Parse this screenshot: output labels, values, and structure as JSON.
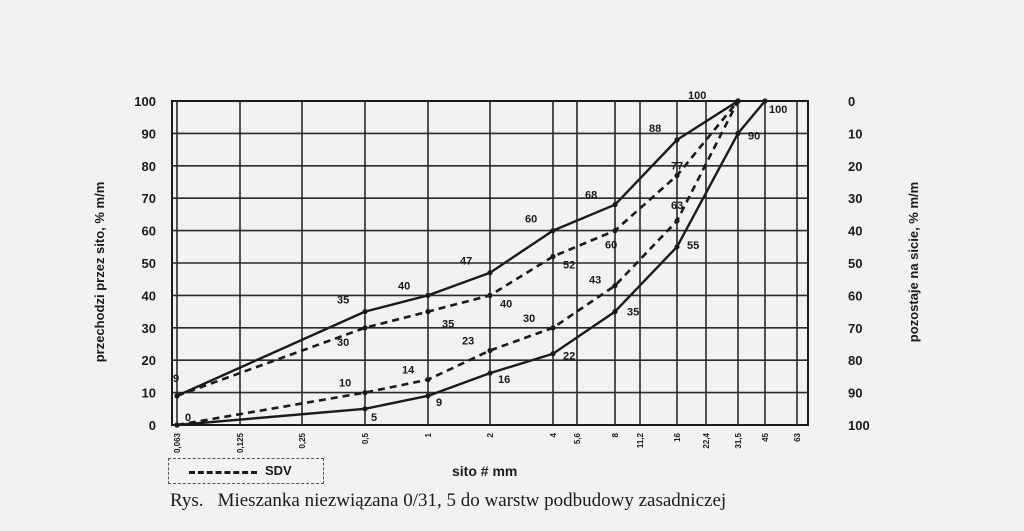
{
  "chart_data": {
    "type": "line",
    "title": "",
    "ylabel": "przechodzi przez sito, % m/m",
    "ylabel_right": "pozostaje na sicie, % m/m",
    "xlabel": "sito # mm",
    "ylim": [
      0,
      100
    ],
    "y_ticks": [
      "0",
      "10",
      "20",
      "30",
      "40",
      "50",
      "60",
      "70",
      "80",
      "90",
      "100"
    ],
    "y_ticks_right": [
      "100",
      "90",
      "80",
      "70",
      "60",
      "50",
      "40",
      "30",
      "20",
      "10",
      "0"
    ],
    "x_tick_labels": [
      "0,063",
      "0,125",
      "0,25",
      "0,5",
      "1",
      "2",
      "4",
      "5,6",
      "8",
      "11,2",
      "16",
      "22,4",
      "31,5",
      "45",
      "63"
    ],
    "grid": true,
    "legend": {
      "label": "SDV",
      "position": "bottom-left"
    },
    "series": [
      {
        "style": "solid",
        "x": [
          0.063,
          0.5,
          1,
          2,
          4,
          8,
          16,
          31.5
        ],
        "y": [
          9,
          35,
          40,
          47,
          60,
          68,
          88,
          100
        ],
        "labels": [
          "9",
          "35",
          "40",
          "47",
          "60",
          "68",
          "88",
          "100"
        ]
      },
      {
        "name": "SDV",
        "style": "dashed",
        "x": [
          0.063,
          0.5,
          1,
          2,
          4,
          8,
          16,
          31.5
        ],
        "y": [
          9,
          30,
          35,
          40,
          52,
          60,
          77,
          100
        ],
        "labels": [
          "",
          "30",
          "35",
          "40",
          "52",
          "60",
          "77",
          ""
        ]
      },
      {
        "name": "SDV",
        "style": "dashed",
        "x": [
          0.063,
          0.5,
          1,
          2,
          4,
          8,
          16,
          31.5
        ],
        "y": [
          0,
          10,
          14,
          23,
          30,
          43,
          63,
          100
        ],
        "labels": [
          "",
          "10",
          "14",
          "23",
          "30",
          "43",
          "63",
          ""
        ]
      },
      {
        "style": "solid",
        "x": [
          0.063,
          0.5,
          1,
          2,
          4,
          8,
          16,
          31.5,
          45
        ],
        "y": [
          0,
          5,
          9,
          16,
          22,
          35,
          55,
          90,
          100
        ],
        "labels": [
          "0",
          "5",
          "9",
          "16",
          "22",
          "35",
          "55",
          "90",
          "100"
        ]
      }
    ]
  },
  "caption": {
    "prefix": "Rys.",
    "text": "Mieszanka niezwiązana 0/31, 5 do warstw podbudowy zasadniczej"
  }
}
